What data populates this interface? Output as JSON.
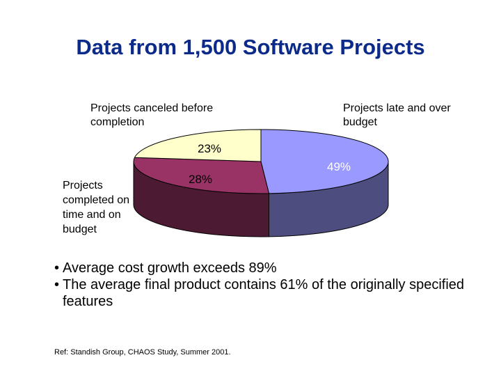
{
  "slide": {
    "title": "Data from 1,500 Software Projects",
    "bullets": [
      "Average cost growth exceeds 89%",
      "The average final product contains 61% of the originally specified features"
    ],
    "reference": "Ref: Standish Group, CHAOS Study, Summer 2001."
  },
  "chart_data": {
    "type": "pie",
    "title": "",
    "slices": [
      {
        "label": "Projects late and over budget",
        "value": 49,
        "value_label": "49%",
        "color": "#9999ff",
        "side_color": "#4d4d80"
      },
      {
        "label": "Projects completed on time and on budget",
        "value": 28,
        "value_label": "28%",
        "color": "#993366",
        "side_color": "#4d1a33"
      },
      {
        "label": "Projects canceled before completion",
        "value": 23,
        "value_label": "23%",
        "color": "#ffffcc",
        "side_color": "#808066"
      }
    ]
  }
}
